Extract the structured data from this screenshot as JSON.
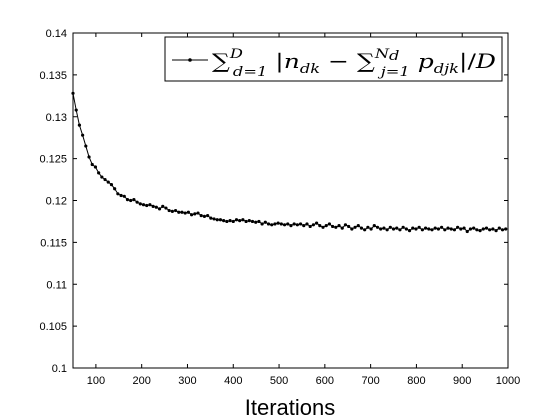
{
  "chart_data": {
    "type": "line",
    "xlabel": "Iterations",
    "ylabel": "",
    "xlim": [
      50,
      1000
    ],
    "ylim": [
      0.1,
      0.14
    ],
    "x_ticks": [
      100,
      200,
      300,
      400,
      500,
      600,
      700,
      800,
      900,
      1000
    ],
    "y_ticks": [
      0.1,
      0.105,
      0.11,
      0.115,
      0.12,
      0.125,
      0.13,
      0.135,
      0.14
    ],
    "y_tick_labels": [
      "0.1",
      "0.105",
      "0.11",
      "0.115",
      "0.12",
      "0.125",
      "0.13",
      "0.135",
      "0.14"
    ],
    "grid": false,
    "legend_position": "top-right",
    "series": [
      {
        "name": "∑_{d=1}^{D} |n_{dk} − ∑_{j=1}^{N_d} p_{djk}| / D",
        "marker": "dot",
        "color": "#000000",
        "x_start": 50,
        "x_step": 7,
        "values": [
          0.1328,
          0.1308,
          0.129,
          0.1278,
          0.1265,
          0.1252,
          0.1243,
          0.124,
          0.1233,
          0.1228,
          0.1225,
          0.1222,
          0.1219,
          0.1214,
          0.1208,
          0.1206,
          0.1205,
          0.1201,
          0.12,
          0.1201,
          0.1198,
          0.1196,
          0.1195,
          0.1194,
          0.1195,
          0.1193,
          0.1192,
          0.119,
          0.1193,
          0.1191,
          0.1188,
          0.1187,
          0.1188,
          0.1186,
          0.1186,
          0.1185,
          0.1186,
          0.1183,
          0.1184,
          0.1185,
          0.1182,
          0.1181,
          0.1182,
          0.1179,
          0.1178,
          0.1177,
          0.1177,
          0.1176,
          0.1175,
          0.1176,
          0.1175,
          0.1177,
          0.1176,
          0.1177,
          0.1175,
          0.1176,
          0.1175,
          0.1174,
          0.1175,
          0.1172,
          0.1174,
          0.1172,
          0.1171,
          0.1172,
          0.1173,
          0.1172,
          0.1171,
          0.1172,
          0.117,
          0.1172,
          0.1171,
          0.1172,
          0.117,
          0.1172,
          0.1169,
          0.1171,
          0.1173,
          0.117,
          0.1168,
          0.117,
          0.1172,
          0.1169,
          0.1168,
          0.117,
          0.1167,
          0.1171,
          0.1169,
          0.1166,
          0.1168,
          0.117,
          0.1167,
          0.1165,
          0.1168,
          0.1166,
          0.117,
          0.1168,
          0.1166,
          0.1167,
          0.1165,
          0.1168,
          0.1166,
          0.1167,
          0.1165,
          0.1168,
          0.1166,
          0.1164,
          0.1167,
          0.1166,
          0.1168,
          0.1165,
          0.1167,
          0.1166,
          0.1165,
          0.1167,
          0.1166,
          0.1168,
          0.1165,
          0.1167,
          0.1166,
          0.1165,
          0.1168,
          0.1166,
          0.1167,
          0.1163,
          0.1166,
          0.1167,
          0.1165,
          0.1164,
          0.1166,
          0.1167,
          0.1165,
          0.1166,
          0.1164,
          0.1167,
          0.1165,
          0.1166
        ]
      }
    ]
  }
}
